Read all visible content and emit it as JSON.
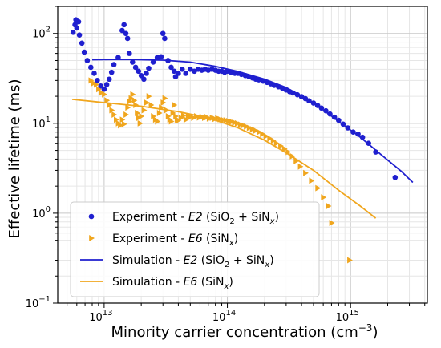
{
  "chart_data": {
    "type": "scatter",
    "xlabel": {
      "base": "Minority carrier concentration (cm",
      "sup": "−3",
      "tail": ")"
    },
    "ylabel": "Effective lifetime (ms)",
    "xscale": "log",
    "yscale": "log",
    "xlim": [
      4200000000000.0,
      4200000000000000.0
    ],
    "ylim": [
      0.1,
      200
    ],
    "grid": true,
    "legend_position": "lower-left",
    "x_ticks": [
      {
        "value": 10000000000000.0,
        "base": "10",
        "exp": "13"
      },
      {
        "value": 100000000000000.0,
        "base": "10",
        "exp": "14"
      },
      {
        "value": 1000000000000000.0,
        "base": "10",
        "exp": "15"
      }
    ],
    "y_ticks": [
      {
        "value": 0.1,
        "base": "10",
        "exp": "−1"
      },
      {
        "value": 1,
        "base": "10",
        "exp": "0"
      },
      {
        "value": 10,
        "base": "10",
        "exp": "1"
      },
      {
        "value": 100,
        "base": "10",
        "exp": "2"
      }
    ],
    "series": [
      {
        "name": "Experiment - E2 (SiO2 + SiNx)",
        "label_parts": [
          {
            "t": "Experiment - "
          },
          {
            "t": "E2",
            "style": "italic"
          },
          {
            "t": " (SiO"
          },
          {
            "t": "2",
            "style": "sub"
          },
          {
            "t": " + SiN"
          },
          {
            "t": "x",
            "style": "sub-italic"
          },
          {
            "t": ")"
          }
        ],
        "kind": "scatter",
        "marker": "circle",
        "color": "#1f1fcf",
        "points": [
          [
            5600000000000.0,
            103
          ],
          [
            5800000000000.0,
            125
          ],
          [
            5900000000000.0,
            142
          ],
          [
            6000000000000.0,
            115
          ],
          [
            6200000000000.0,
            135
          ],
          [
            6300000000000.0,
            96
          ],
          [
            6600000000000.0,
            78
          ],
          [
            6900000000000.0,
            62
          ],
          [
            7300000000000.0,
            50
          ],
          [
            7800000000000.0,
            42
          ],
          [
            8300000000000.0,
            36
          ],
          [
            8800000000000.0,
            30
          ],
          [
            9400000000000.0,
            26
          ],
          [
            10000000000000.0,
            24
          ],
          [
            10500000000000.0,
            27
          ],
          [
            11000000000000.0,
            31
          ],
          [
            11500000000000.0,
            37
          ],
          [
            12000000000000.0,
            45
          ],
          [
            13000000000000.0,
            54
          ],
          [
            14000000000000.0,
            108
          ],
          [
            14500000000000.0,
            125
          ],
          [
            15000000000000.0,
            100
          ],
          [
            15500000000000.0,
            88
          ],
          [
            16000000000000.0,
            60
          ],
          [
            17000000000000.0,
            48
          ],
          [
            18000000000000.0,
            42
          ],
          [
            19000000000000.0,
            38
          ],
          [
            20000000000000.0,
            34
          ],
          [
            21000000000000.0,
            31
          ],
          [
            22000000000000.0,
            36
          ],
          [
            23000000000000.0,
            41
          ],
          [
            25000000000000.0,
            48
          ],
          [
            27000000000000.0,
            54
          ],
          [
            29000000000000.0,
            55
          ],
          [
            30000000000000.0,
            100
          ],
          [
            31000000000000.0,
            88
          ],
          [
            33000000000000.0,
            50
          ],
          [
            35000000000000.0,
            42
          ],
          [
            37000000000000.0,
            38
          ],
          [
            38000000000000.0,
            33
          ],
          [
            40000000000000.0,
            36
          ],
          [
            43000000000000.0,
            40
          ],
          [
            46000000000000.0,
            36
          ],
          [
            50000000000000.0,
            40
          ],
          [
            54000000000000.0,
            38
          ],
          [
            58000000000000.0,
            40
          ],
          [
            62000000000000.0,
            39
          ],
          [
            66000000000000.0,
            40
          ],
          [
            70000000000000.0,
            39
          ],
          [
            75000000000000.0,
            40
          ],
          [
            80000000000000.0,
            39
          ],
          [
            85000000000000.0,
            38
          ],
          [
            90000000000000.0,
            38
          ],
          [
            95000000000000.0,
            37
          ],
          [
            100000000000000.0,
            38
          ],
          [
            107000000000000.0,
            37
          ],
          [
            115000000000000.0,
            36
          ],
          [
            122000000000000.0,
            36
          ],
          [
            130000000000000.0,
            35
          ],
          [
            140000000000000.0,
            34
          ],
          [
            150000000000000.0,
            33
          ],
          [
            160000000000000.0,
            32
          ],
          [
            170000000000000.0,
            31
          ],
          [
            180000000000000.0,
            30.5
          ],
          [
            195000000000000.0,
            29.5
          ],
          [
            210000000000000.0,
            28.5
          ],
          [
            225000000000000.0,
            27.5
          ],
          [
            240000000000000.0,
            26.5
          ],
          [
            260000000000000.0,
            25.5
          ],
          [
            280000000000000.0,
            24.5
          ],
          [
            300000000000000.0,
            23.5
          ],
          [
            320000000000000.0,
            22.5
          ],
          [
            340000000000000.0,
            21.8
          ],
          [
            370000000000000.0,
            20.8
          ],
          [
            400000000000000.0,
            19.8
          ],
          [
            430000000000000.0,
            18.8
          ],
          [
            460000000000000.0,
            17.8
          ],
          [
            500000000000000.0,
            16.8
          ],
          [
            540000000000000.0,
            15.8
          ],
          [
            580000000000000.0,
            14.8
          ],
          [
            630000000000000.0,
            13.8
          ],
          [
            680000000000000.0,
            12.7
          ],
          [
            740000000000000.0,
            11.7
          ],
          [
            800000000000000.0,
            10.8
          ],
          [
            870000000000000.0,
            9.8
          ],
          [
            950000000000000.0,
            8.9
          ],
          [
            1050000000000000.0,
            8.0
          ],
          [
            1150000000000000.0,
            7.6
          ],
          [
            1250000000000000.0,
            7.0
          ],
          [
            1400000000000000.0,
            6.0
          ],
          [
            1600000000000000.0,
            4.8
          ],
          [
            2300000000000000.0,
            2.5
          ]
        ]
      },
      {
        "name": "Experiment - E6 (SiNx)",
        "label_parts": [
          {
            "t": "Experiment - "
          },
          {
            "t": "E6",
            "style": "italic"
          },
          {
            "t": " (SiN"
          },
          {
            "t": "x",
            "style": "sub-italic"
          },
          {
            "t": ")"
          }
        ],
        "kind": "scatter",
        "marker": "triangle-right",
        "color": "#f0a61e",
        "points": [
          [
            7800000000000.0,
            30
          ],
          [
            8200000000000.0,
            28
          ],
          [
            8600000000000.0,
            27
          ],
          [
            9000000000000.0,
            24
          ],
          [
            9500000000000.0,
            22
          ],
          [
            10000000000000.0,
            21
          ],
          [
            10500000000000.0,
            18
          ],
          [
            11000000000000.0,
            16
          ],
          [
            11500000000000.0,
            14
          ],
          [
            12000000000000.0,
            12.5
          ],
          [
            12500000000000.0,
            11
          ],
          [
            13000000000000.0,
            10
          ],
          [
            13500000000000.0,
            9.5
          ],
          [
            14000000000000.0,
            11
          ],
          [
            14500000000000.0,
            9.8
          ],
          [
            15000000000000.0,
            12.5
          ],
          [
            15500000000000.0,
            15
          ],
          [
            16000000000000.0,
            17.5
          ],
          [
            16500000000000.0,
            19
          ],
          [
            17000000000000.0,
            21
          ],
          [
            17500000000000.0,
            18
          ],
          [
            18000000000000.0,
            16
          ],
          [
            18500000000000.0,
            13
          ],
          [
            19000000000000.0,
            11.5
          ],
          [
            19500000000000.0,
            10
          ],
          [
            20000000000000.0,
            12
          ],
          [
            21000000000000.0,
            14
          ],
          [
            22000000000000.0,
            17
          ],
          [
            23000000000000.0,
            20
          ],
          [
            24000000000000.0,
            16
          ],
          [
            25000000000000.0,
            12
          ],
          [
            26000000000000.0,
            11
          ],
          [
            27000000000000.0,
            10.5
          ],
          [
            28000000000000.0,
            13
          ],
          [
            29000000000000.0,
            15
          ],
          [
            30000000000000.0,
            17
          ],
          [
            31000000000000.0,
            19
          ],
          [
            32000000000000.0,
            14
          ],
          [
            33000000000000.0,
            12
          ],
          [
            34000000000000.0,
            11
          ],
          [
            35000000000000.0,
            10.5
          ],
          [
            36000000000000.0,
            13
          ],
          [
            37000000000000.0,
            16
          ],
          [
            38000000000000.0,
            12
          ],
          [
            39000000000000.0,
            11
          ],
          [
            40000000000000.0,
            10.8
          ],
          [
            42000000000000.0,
            11.5
          ],
          [
            44000000000000.0,
            12.2
          ],
          [
            46000000000000.0,
            11
          ],
          [
            48000000000000.0,
            12
          ],
          [
            50000000000000.0,
            11.8
          ],
          [
            53000000000000.0,
            11.5
          ],
          [
            56000000000000.0,
            12
          ],
          [
            59000000000000.0,
            11.6
          ],
          [
            62000000000000.0,
            11.8
          ],
          [
            65000000000000.0,
            11.5
          ],
          [
            68000000000000.0,
            11.7
          ],
          [
            71000000000000.0,
            11.3
          ],
          [
            75000000000000.0,
            11.5
          ],
          [
            79000000000000.0,
            11.2
          ],
          [
            83000000000000.0,
            11.4
          ],
          [
            87000000000000.0,
            11.1
          ],
          [
            92000000000000.0,
            10.9
          ],
          [
            97000000000000.0,
            10.8
          ],
          [
            102000000000000.0,
            10.6
          ],
          [
            108000000000000.0,
            10.4
          ],
          [
            114000000000000.0,
            10.2
          ],
          [
            120000000000000.0,
            10
          ],
          [
            127000000000000.0,
            9.7
          ],
          [
            134000000000000.0,
            9.5
          ],
          [
            142000000000000.0,
            9.2
          ],
          [
            150000000000000.0,
            8.9
          ],
          [
            159000000000000.0,
            8.6
          ],
          [
            169000000000000.0,
            8.3
          ],
          [
            180000000000000.0,
            8.0
          ],
          [
            192000000000000.0,
            7.6
          ],
          [
            205000000000000.0,
            7.2
          ],
          [
            220000000000000.0,
            6.8
          ],
          [
            235000000000000.0,
            6.4
          ],
          [
            250000000000000.0,
            6.0
          ],
          [
            270000000000000.0,
            5.6
          ],
          [
            290000000000000.0,
            5.2
          ],
          [
            310000000000000.0,
            4.8
          ],
          [
            335000000000000.0,
            4.3
          ],
          [
            360000000000000.0,
            3.8
          ],
          [
            390000000000000.0,
            3.3
          ],
          [
            430000000000000.0,
            2.8
          ],
          [
            480000000000000.0,
            2.3
          ],
          [
            540000000000000.0,
            1.9
          ],
          [
            600000000000000.0,
            1.5
          ],
          [
            660000000000000.0,
            1.2
          ],
          [
            700000000000000.0,
            0.78
          ],
          [
            980000000000000.0,
            0.3
          ]
        ]
      },
      {
        "name": "Simulation - E2 (SiO2 + SiNx)",
        "label_parts": [
          {
            "t": "Simulation - "
          },
          {
            "t": "E2",
            "style": "italic"
          },
          {
            "t": " (SiO"
          },
          {
            "t": "2",
            "style": "sub"
          },
          {
            "t": " + SiN"
          },
          {
            "t": "x",
            "style": "sub-italic"
          },
          {
            "t": ")"
          }
        ],
        "kind": "line",
        "color": "#1f1fcf",
        "points": [
          [
            8000000000000.0,
            51
          ],
          [
            15000000000000.0,
            51.5
          ],
          [
            30000000000000.0,
            50.5
          ],
          [
            50000000000000.0,
            48
          ],
          [
            80000000000000.0,
            43
          ],
          [
            120000000000000.0,
            38
          ],
          [
            200000000000000.0,
            31
          ],
          [
            300000000000000.0,
            25
          ],
          [
            500000000000000.0,
            17
          ],
          [
            800000000000000.0,
            10.5
          ],
          [
            1200000000000000.0,
            7
          ],
          [
            1800000000000000.0,
            4.4
          ],
          [
            2600000000000000.0,
            2.9
          ],
          [
            3200000000000000.0,
            2.2
          ]
        ]
      },
      {
        "name": "Simulation - E6 (SiNx)",
        "label_parts": [
          {
            "t": "Simulation - "
          },
          {
            "t": "E6",
            "style": "italic"
          },
          {
            "t": " (SiN"
          },
          {
            "t": "x",
            "style": "sub-italic"
          },
          {
            "t": ")"
          }
        ],
        "kind": "line",
        "color": "#f0a61e",
        "points": [
          [
            5500000000000.0,
            18.5
          ],
          [
            10000000000000.0,
            17
          ],
          [
            20000000000000.0,
            15.5
          ],
          [
            40000000000000.0,
            13.5
          ],
          [
            70000000000000.0,
            11.5
          ],
          [
            120000000000000.0,
            9
          ],
          [
            200000000000000.0,
            6.5
          ],
          [
            300000000000000.0,
            4.7
          ],
          [
            500000000000000.0,
            3
          ],
          [
            800000000000000.0,
            1.8
          ],
          [
            1200000000000000.0,
            1.2
          ],
          [
            1600000000000000.0,
            0.88
          ]
        ]
      }
    ]
  }
}
